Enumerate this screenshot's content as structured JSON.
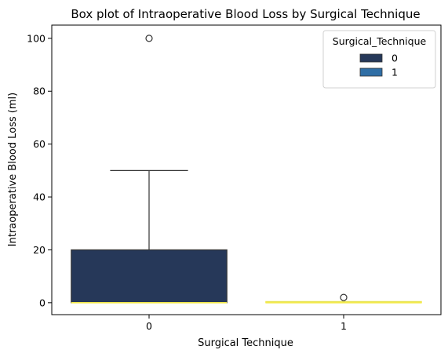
{
  "chart_data": {
    "type": "box",
    "title": "Box plot of Intraoperative Blood Loss by Surgical Technique",
    "xlabel": "Surgical Technique",
    "ylabel": "Intraoperative Blood Loss (ml)",
    "categories": [
      "0",
      "1"
    ],
    "ylim": [
      -4.5,
      105
    ],
    "yticks": [
      0,
      20,
      40,
      60,
      80,
      100
    ],
    "boxes": [
      {
        "category": "0",
        "min": 0,
        "q1": 0,
        "median": 0,
        "q3": 20,
        "max": 50,
        "outliers": [
          100
        ],
        "color": "#263859",
        "median_color": "#f3ea4b"
      },
      {
        "category": "1",
        "min": 0,
        "q1": 0,
        "median": 0,
        "q3": 0,
        "max": 0,
        "outliers": [
          2
        ],
        "color": "#2f6ea5",
        "median_color": "#f3ea4b"
      }
    ],
    "legend": {
      "title": "Surgical_Technique",
      "position": "top-right",
      "entries": [
        {
          "label": "0",
          "color": "#263859"
        },
        {
          "label": "1",
          "color": "#2f6ea5"
        }
      ]
    },
    "grid": false
  }
}
